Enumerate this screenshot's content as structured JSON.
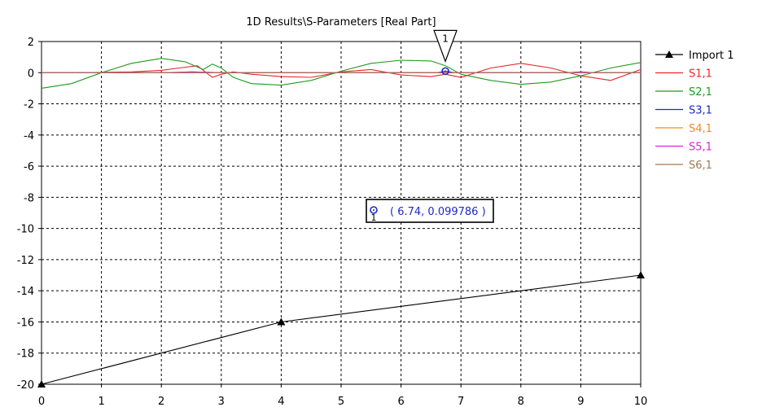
{
  "chart_data": {
    "type": "line",
    "title": "1D Results\\S-Parameters [Real Part]",
    "xlabel": "",
    "ylabel": "",
    "xlim": [
      0,
      10
    ],
    "ylim": [
      -20,
      2
    ],
    "x_ticks": [
      "0",
      "1",
      "2",
      "3",
      "4",
      "5",
      "6",
      "7",
      "8",
      "9",
      "10"
    ],
    "y_ticks": [
      "2",
      "0",
      "-2",
      "-4",
      "-6",
      "-8",
      "-10",
      "-12",
      "-14",
      "-16",
      "-18",
      "-20"
    ],
    "grid": true,
    "legend_position": "right",
    "series": [
      {
        "name": "Import 1",
        "color": "#000000",
        "marker": "triangle",
        "x": [
          0,
          4,
          10
        ],
        "y": [
          -20,
          -16,
          -13
        ]
      },
      {
        "name": "S1,1",
        "color": "#e8252a",
        "x": [
          0,
          0.5,
          1.0,
          1.5,
          2.0,
          2.3,
          2.6,
          2.75,
          2.85,
          3.0,
          3.2,
          3.5,
          4.0,
          4.5,
          5.0,
          5.5,
          6.0,
          6.5,
          6.74,
          7.0,
          7.5,
          8.0,
          8.5,
          9.0,
          9.5,
          10.0
        ],
        "y": [
          0,
          0,
          0.02,
          0.05,
          0.15,
          0.3,
          0.45,
          0,
          -0.3,
          -0.1,
          0.05,
          -0.1,
          -0.25,
          -0.3,
          0.05,
          0.2,
          -0.15,
          -0.25,
          -0.1,
          -0.3,
          0.3,
          0.6,
          0.3,
          -0.2,
          -0.5,
          0.2
        ]
      },
      {
        "name": "S2,1",
        "color": "#1f9b1f",
        "x": [
          0,
          0.5,
          1.0,
          1.5,
          2.0,
          2.4,
          2.7,
          2.85,
          3.0,
          3.2,
          3.5,
          4.0,
          4.5,
          5.0,
          5.5,
          6.0,
          6.5,
          6.74,
          7.0,
          7.5,
          8.0,
          8.5,
          9.0,
          9.5,
          10.0
        ],
        "y": [
          -1.0,
          -0.7,
          0.0,
          0.6,
          0.92,
          0.7,
          0.2,
          0.55,
          0.3,
          -0.3,
          -0.7,
          -0.8,
          -0.5,
          0.1,
          0.6,
          0.8,
          0.75,
          0.45,
          -0.1,
          -0.5,
          -0.75,
          -0.6,
          -0.2,
          0.3,
          0.65
        ]
      },
      {
        "name": "S3,1",
        "color": "#1e28c8",
        "x": [
          0,
          2.2,
          2.5,
          3.0,
          5.0,
          6.6,
          6.74,
          6.9,
          8.8,
          9.0,
          9.2,
          10.0
        ],
        "y": [
          0,
          0,
          0.05,
          0,
          0,
          0,
          0.099786,
          0,
          0,
          0.05,
          0,
          0
        ]
      },
      {
        "name": "S4,1",
        "color": "#f08c1a",
        "x": [
          0,
          10
        ],
        "y": [
          0,
          0
        ]
      },
      {
        "name": "S5,1",
        "color": "#e020d8",
        "x": [
          0,
          2.0,
          2.5,
          3.0,
          5.0,
          6.5,
          7.0,
          8.8,
          9.0,
          9.2,
          10.0
        ],
        "y": [
          0,
          0,
          0.05,
          0,
          0,
          0,
          0,
          0,
          0.05,
          0,
          0
        ]
      },
      {
        "name": "S6,1",
        "color": "#a07850",
        "x": [
          0,
          10
        ],
        "y": [
          0,
          0
        ]
      }
    ],
    "marker": {
      "label": "1",
      "x": 6.74,
      "y": 0.099786,
      "readout": "( 6.74, 0.099786 )",
      "readout_subscript": "1",
      "color": "#1e28c8"
    }
  }
}
